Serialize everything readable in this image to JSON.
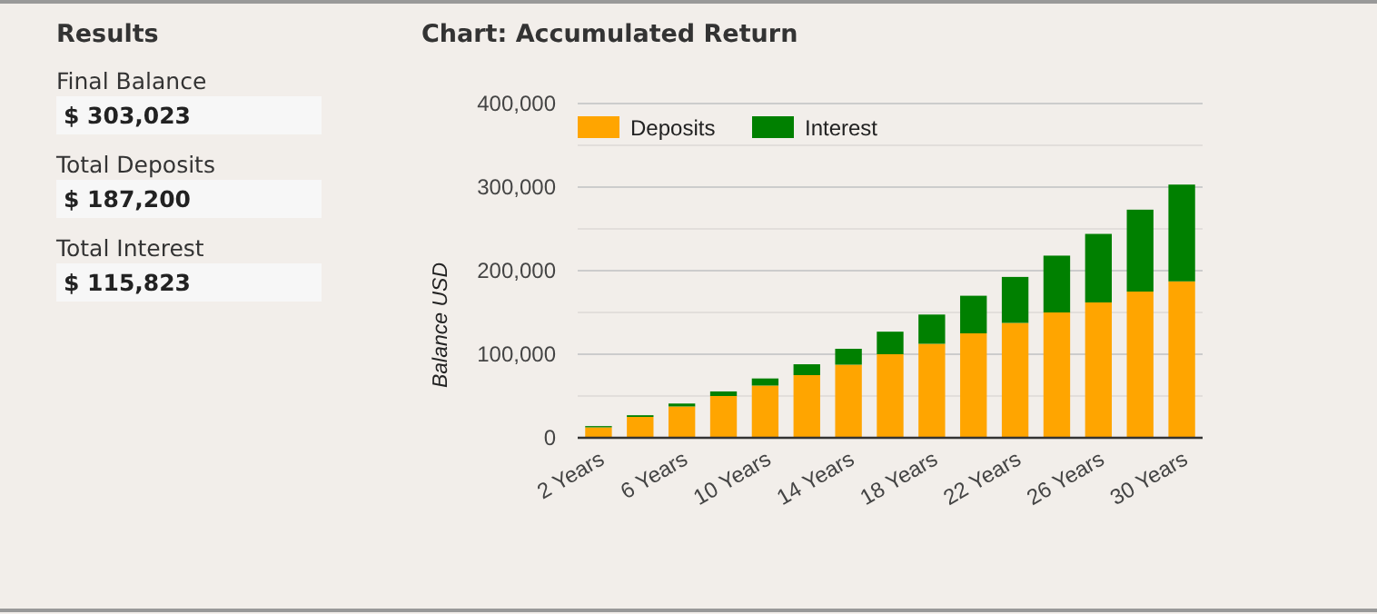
{
  "chart_data": [
    {
      "type": "other",
      "title": "Results",
      "annotations": [
        "Final Balance",
        "$ 303,023",
        "Total Deposits",
        "$ 187,200",
        "Total Interest",
        "$ 115,823"
      ]
    },
    {
      "type": "bar",
      "title": "Chart: Accumulated Return",
      "ylabel": "Balance USD",
      "stacked": true,
      "legend": "top left",
      "grid": "y",
      "categories": [
        "2 Years",
        null,
        "6 Years",
        null,
        "10 Years",
        null,
        "14 Years",
        null,
        "18 Years",
        null,
        "22 Years",
        null,
        "26 Years",
        null,
        "30 Years"
      ],
      "series": [
        {
          "name": "Deposits",
          "color": "#ffa500",
          "values": [
            12500,
            25000,
            37500,
            50000,
            62500,
            75000,
            87500,
            100000,
            112500,
            125000,
            137500,
            150000,
            162000,
            175000,
            187200
          ]
        },
        {
          "name": "Interest",
          "color": "#008000",
          "values": [
            1500,
            2000,
            3500,
            5500,
            8500,
            13000,
            19000,
            27000,
            35000,
            45000,
            55000,
            68000,
            82000,
            98000,
            115823
          ]
        }
      ],
      "ylim": [
        0,
        400000
      ],
      "yticks": [
        {
          "value": 0,
          "label": "0"
        },
        {
          "value": 50000,
          "label": null
        },
        {
          "value": 100000,
          "label": "100,000"
        },
        {
          "value": 150000,
          "label": null
        },
        {
          "value": 200000,
          "label": "200,000"
        },
        {
          "value": 250000,
          "label": null
        },
        {
          "value": 300000,
          "label": "300,000"
        },
        {
          "value": 350000,
          "label": null
        },
        {
          "value": 400000,
          "label": "400,000"
        }
      ]
    }
  ]
}
